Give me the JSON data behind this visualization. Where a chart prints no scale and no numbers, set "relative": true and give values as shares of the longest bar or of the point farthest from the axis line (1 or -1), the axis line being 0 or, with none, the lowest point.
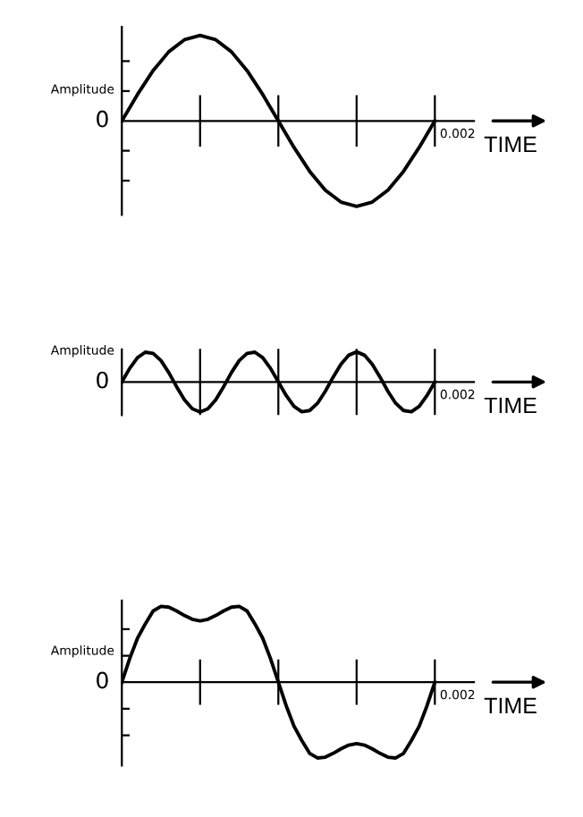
{
  "chart_data": [
    {
      "type": "line",
      "relative": true,
      "ylabel": "Amplitude",
      "xlabel": "TIME",
      "annotations": [
        "0",
        "0.002"
      ],
      "categories": [
        null,
        null,
        null,
        null,
        null,
        null,
        null,
        null,
        null,
        null,
        null,
        null,
        null,
        null,
        null,
        null,
        null,
        null,
        null,
        null,
        null
      ],
      "series": [
        {
          "color": "#000000",
          "values": [
            0,
            0.31,
            0.59,
            0.81,
            0.95,
            1,
            0.95,
            0.81,
            0.59,
            0.31,
            0,
            -0.31,
            -0.59,
            -0.81,
            -0.95,
            -1,
            -0.95,
            -0.81,
            -0.59,
            -0.31,
            0
          ]
        }
      ]
    },
    {
      "type": "line",
      "relative": true,
      "grid": "x",
      "ylabel": "Amplitude",
      "xlabel": "TIME",
      "annotations": [
        "0",
        "0.002"
      ],
      "categories": [
        null,
        null,
        null,
        null,
        null,
        null,
        null,
        null,
        null,
        null,
        null,
        null,
        null,
        null,
        null,
        null,
        null,
        null,
        null,
        null,
        null,
        null,
        null,
        null,
        null,
        null,
        null,
        null,
        null,
        null,
        null,
        null,
        null,
        null,
        null,
        null,
        null,
        null,
        null,
        null,
        null
      ],
      "series": [
        {
          "color": "#000000",
          "values": [
            0,
            0.45,
            0.81,
            0.99,
            0.95,
            0.71,
            0.31,
            -0.16,
            -0.59,
            -0.89,
            -1,
            -0.89,
            -0.59,
            -0.16,
            0.31,
            0.71,
            0.95,
            0.99,
            0.81,
            0.45,
            0,
            -0.45,
            -0.81,
            -0.99,
            -0.95,
            -0.71,
            -0.31,
            0.16,
            0.59,
            0.89,
            1,
            0.89,
            0.59,
            0.16,
            -0.31,
            -0.71,
            -0.95,
            -0.99,
            -0.81,
            -0.45,
            0
          ]
        }
      ]
    },
    {
      "type": "line",
      "relative": true,
      "ylabel": "Amplitude",
      "xlabel": "TIME",
      "annotations": [
        "0",
        "0.002"
      ],
      "categories": [
        null,
        null,
        null,
        null,
        null,
        null,
        null,
        null,
        null,
        null,
        null,
        null,
        null,
        null,
        null,
        null,
        null,
        null,
        null,
        null,
        null,
        null,
        null,
        null,
        null,
        null,
        null,
        null,
        null,
        null,
        null,
        null,
        null,
        null,
        null,
        null,
        null,
        null,
        null,
        null,
        null
      ],
      "series": [
        {
          "color": "#000000",
          "values": [
            0,
            0.31,
            0.58,
            0.77,
            0.94,
            1,
            0.99,
            0.94,
            0.88,
            0.83,
            0.81,
            0.83,
            0.88,
            0.94,
            0.99,
            1,
            0.94,
            0.77,
            0.58,
            0.31,
            0,
            -0.31,
            -0.58,
            -0.77,
            -0.94,
            -1,
            -0.99,
            -0.94,
            -0.88,
            -0.83,
            -0.81,
            -0.83,
            -0.88,
            -0.94,
            -0.99,
            -1,
            -0.94,
            -0.77,
            -0.58,
            -0.31,
            0
          ]
        }
      ]
    }
  ]
}
